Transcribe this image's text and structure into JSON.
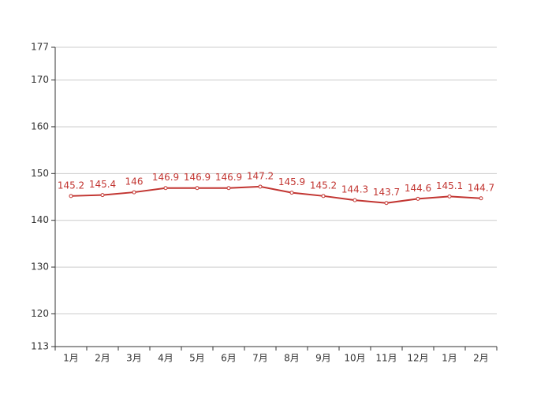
{
  "chart_data": {
    "type": "line",
    "categories": [
      "1月",
      "2月",
      "3月",
      "4月",
      "5月",
      "6月",
      "7月",
      "8月",
      "9月",
      "10月",
      "11月",
      "12月",
      "1月",
      "2月"
    ],
    "values": [
      145.2,
      145.4,
      146,
      146.9,
      146.9,
      146.9,
      147.2,
      145.9,
      145.2,
      144.3,
      143.7,
      144.6,
      145.1,
      144.7
    ],
    "color": "#c23531",
    "ylim": [
      113,
      177
    ],
    "yticks": [
      113,
      120,
      130,
      140,
      150,
      160,
      170,
      177
    ],
    "grid": true
  }
}
